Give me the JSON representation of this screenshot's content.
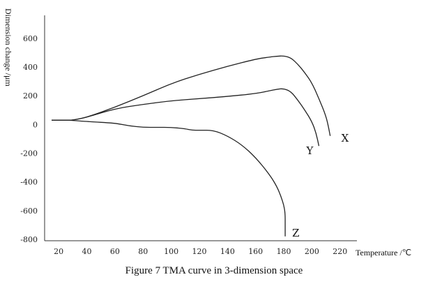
{
  "chart_data": {
    "type": "line",
    "title": "Figure 7 TMA curve in 3-dimension space",
    "xlabel": "Temperature /℃",
    "ylabel": "Dimension change /μm",
    "xlim": [
      10,
      232
    ],
    "ylim": [
      -810,
      760
    ],
    "x_ticks": [
      20,
      40,
      60,
      80,
      100,
      120,
      140,
      160,
      180,
      200,
      220
    ],
    "y_ticks": [
      600,
      400,
      200,
      0,
      -200,
      -400,
      -600,
      -800
    ],
    "grid": false,
    "series": [
      {
        "name": "X",
        "points": [
          [
            15,
            30
          ],
          [
            25,
            30
          ],
          [
            30,
            30
          ],
          [
            40,
            50
          ],
          [
            60,
            120
          ],
          [
            80,
            200
          ],
          [
            100,
            285
          ],
          [
            120,
            350
          ],
          [
            140,
            405
          ],
          [
            160,
            455
          ],
          [
            170,
            470
          ],
          [
            175,
            475
          ],
          [
            180,
            478
          ],
          [
            185,
            465
          ],
          [
            190,
            420
          ],
          [
            195,
            360
          ],
          [
            200,
            290
          ],
          [
            205,
            180
          ],
          [
            210,
            60
          ],
          [
            212,
            -25
          ],
          [
            213,
            -80
          ]
        ]
      },
      {
        "name": "Y",
        "points": [
          [
            15,
            30
          ],
          [
            25,
            30
          ],
          [
            30,
            30
          ],
          [
            40,
            50
          ],
          [
            60,
            110
          ],
          [
            80,
            140
          ],
          [
            100,
            165
          ],
          [
            120,
            180
          ],
          [
            140,
            195
          ],
          [
            160,
            215
          ],
          [
            170,
            235
          ],
          [
            175,
            245
          ],
          [
            180,
            250
          ],
          [
            185,
            230
          ],
          [
            190,
            170
          ],
          [
            195,
            100
          ],
          [
            200,
            20
          ],
          [
            203,
            -60
          ],
          [
            205,
            -150
          ]
        ]
      },
      {
        "name": "Z",
        "points": [
          [
            15,
            30
          ],
          [
            25,
            30
          ],
          [
            30,
            28
          ],
          [
            40,
            20
          ],
          [
            60,
            10
          ],
          [
            70,
            -10
          ],
          [
            80,
            -20
          ],
          [
            90,
            -20
          ],
          [
            100,
            -20
          ],
          [
            110,
            -30
          ],
          [
            115,
            -40
          ],
          [
            120,
            -40
          ],
          [
            130,
            -40
          ],
          [
            140,
            -80
          ],
          [
            150,
            -140
          ],
          [
            160,
            -230
          ],
          [
            170,
            -350
          ],
          [
            175,
            -430
          ],
          [
            178,
            -500
          ],
          [
            180,
            -560
          ],
          [
            181,
            -620
          ],
          [
            181,
            -700
          ],
          [
            181,
            -780
          ]
        ]
      }
    ]
  }
}
